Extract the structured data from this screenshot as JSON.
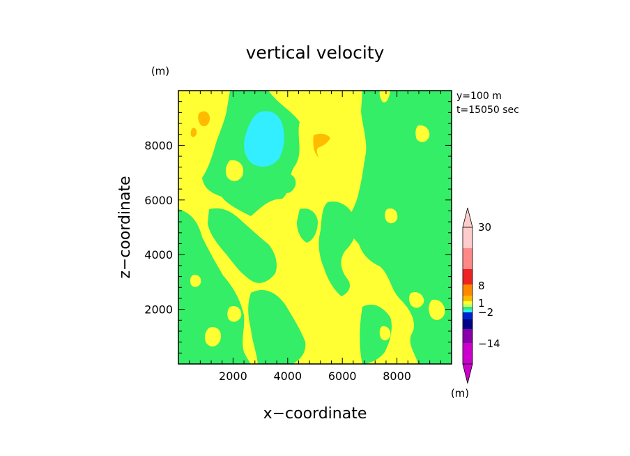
{
  "chart_data": {
    "type": "heatmap",
    "title": "vertical velocity",
    "xlabel": "x−coordinate",
    "ylabel": "z−coordinate",
    "x_unit": "(m)",
    "y_unit": "(m)",
    "colorbar_unit": "(m)",
    "info": [
      "y=100  m",
      "t=15050 sec"
    ],
    "xlim": [
      0,
      10000
    ],
    "ylim": [
      0,
      10000
    ],
    "xticks": [
      2000,
      4000,
      6000,
      8000
    ],
    "yticks": [
      2000,
      4000,
      6000,
      8000
    ],
    "xtick_labels": [
      "2000",
      "4000",
      "6000",
      "8000"
    ],
    "ytick_labels": [
      "2000",
      "4000",
      "6000",
      "8000"
    ],
    "levels": [
      -14,
      -2,
      1,
      8,
      30
    ],
    "colorbar_labels": [
      "30",
      "8",
      "1",
      "−2",
      "−14"
    ],
    "colors": {
      "pale_yellow": "#ffff33",
      "green": "#33ee66",
      "cyan": "#33eeff",
      "orange": "#ffbb00",
      "dark_orange": "#ff8800",
      "red": "#ee2222",
      "salmon": "#ff8888",
      "pink": "#ffcccc",
      "blue": "#0022cc",
      "navy": "#000088",
      "purple": "#8800aa",
      "magenta": "#cc00cc"
    }
  }
}
